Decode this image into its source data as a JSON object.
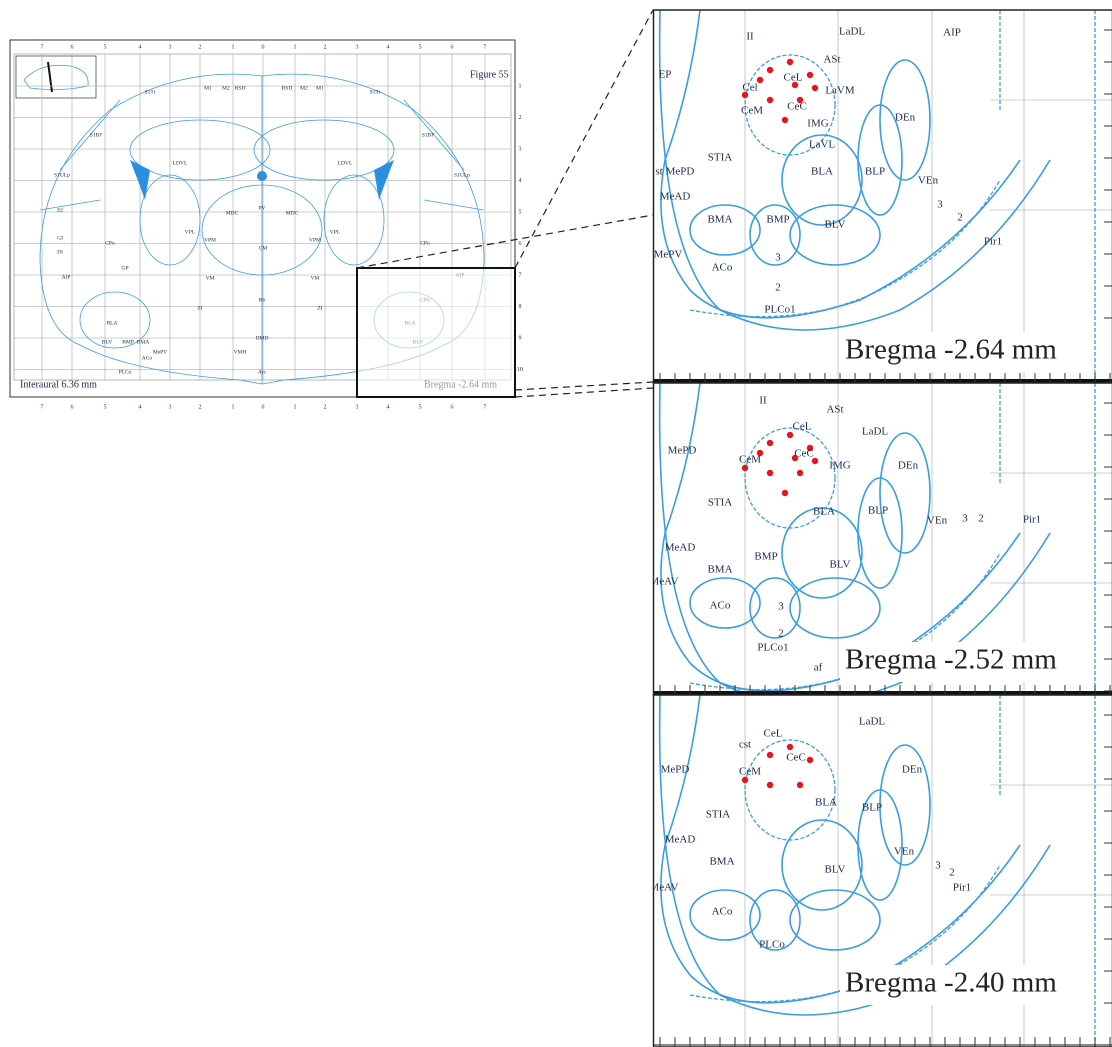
{
  "overview": {
    "figure_label": "Figure 55",
    "interaural": "Interaural 6.36 mm",
    "bregma": "Bregma -2.64 mm",
    "x_axis_labels": [
      "7",
      "6",
      "5",
      "4",
      "3",
      "2",
      "1",
      "0",
      "1",
      "2",
      "3",
      "4",
      "5",
      "6",
      "7"
    ],
    "y_axis_labels": [
      "1",
      "2",
      "3",
      "4",
      "5",
      "6",
      "7",
      "8",
      "9",
      "10"
    ],
    "regions": [
      "S1Tr",
      "M1",
      "M2",
      "RSD",
      "RSD",
      "M2",
      "M1",
      "S1Tr",
      "S1BF",
      "S1BF",
      "S1ULp",
      "S1ULp",
      "S2",
      "GI",
      "DI",
      "AIP",
      "CPu",
      "CPu",
      "LDVL",
      "LDVL",
      "CM",
      "VM",
      "VM",
      "ZI",
      "ZI",
      "BLA",
      "BLV",
      "BMP",
      "BMA",
      "MePV",
      "ACo",
      "PLCo",
      "VPM",
      "VPL",
      "VPL",
      "VPM",
      "MDC",
      "MDC",
      "PV",
      "Rh",
      "DMD",
      "VMH",
      "Arc",
      "BLA",
      "BLV",
      "AIP",
      "CPu",
      "GP"
    ]
  },
  "panels": [
    {
      "bregma": "Bregma -2.64 mm",
      "regions": [
        "EP",
        "II",
        "LaDL",
        "AIP",
        "ASt",
        "CeL",
        "Cel",
        "LaVM",
        "CeM",
        "CeC",
        "IMG",
        "DEn",
        "LaVL",
        "STIA",
        "MePD",
        "st",
        "BLA",
        "BLP",
        "VEn",
        "MeAD",
        "3",
        "2",
        "BMA",
        "BMP",
        "BLV",
        "Pir1",
        "MePV",
        "ACo",
        "3",
        "2",
        "PLCo1"
      ]
    },
    {
      "bregma": "Bregma -2.52 mm",
      "regions": [
        "II",
        "ASt",
        "LaDL",
        "CeL",
        "MePD",
        "CeM",
        "CeC",
        "IMG",
        "DEn",
        "STIA",
        "BLA",
        "BLP",
        "VEn",
        "3",
        "2",
        "Pir1",
        "MeAD",
        "BMP",
        "BMA",
        "BLV",
        "MeAV",
        "ACo",
        "3",
        "2",
        "PLCo1",
        "af"
      ]
    },
    {
      "bregma": "Bregma -2.40 mm",
      "regions": [
        "LaDL",
        "CeL",
        "cst",
        "CeC",
        "MePD",
        "CeM",
        "DEn",
        "STIA",
        "BLA",
        "BLP",
        "VEn",
        "MeAD",
        "BMA",
        "BLV",
        "3",
        "2",
        "Pir1",
        "MeAV",
        "ACo",
        "PLCo"
      ]
    }
  ]
}
